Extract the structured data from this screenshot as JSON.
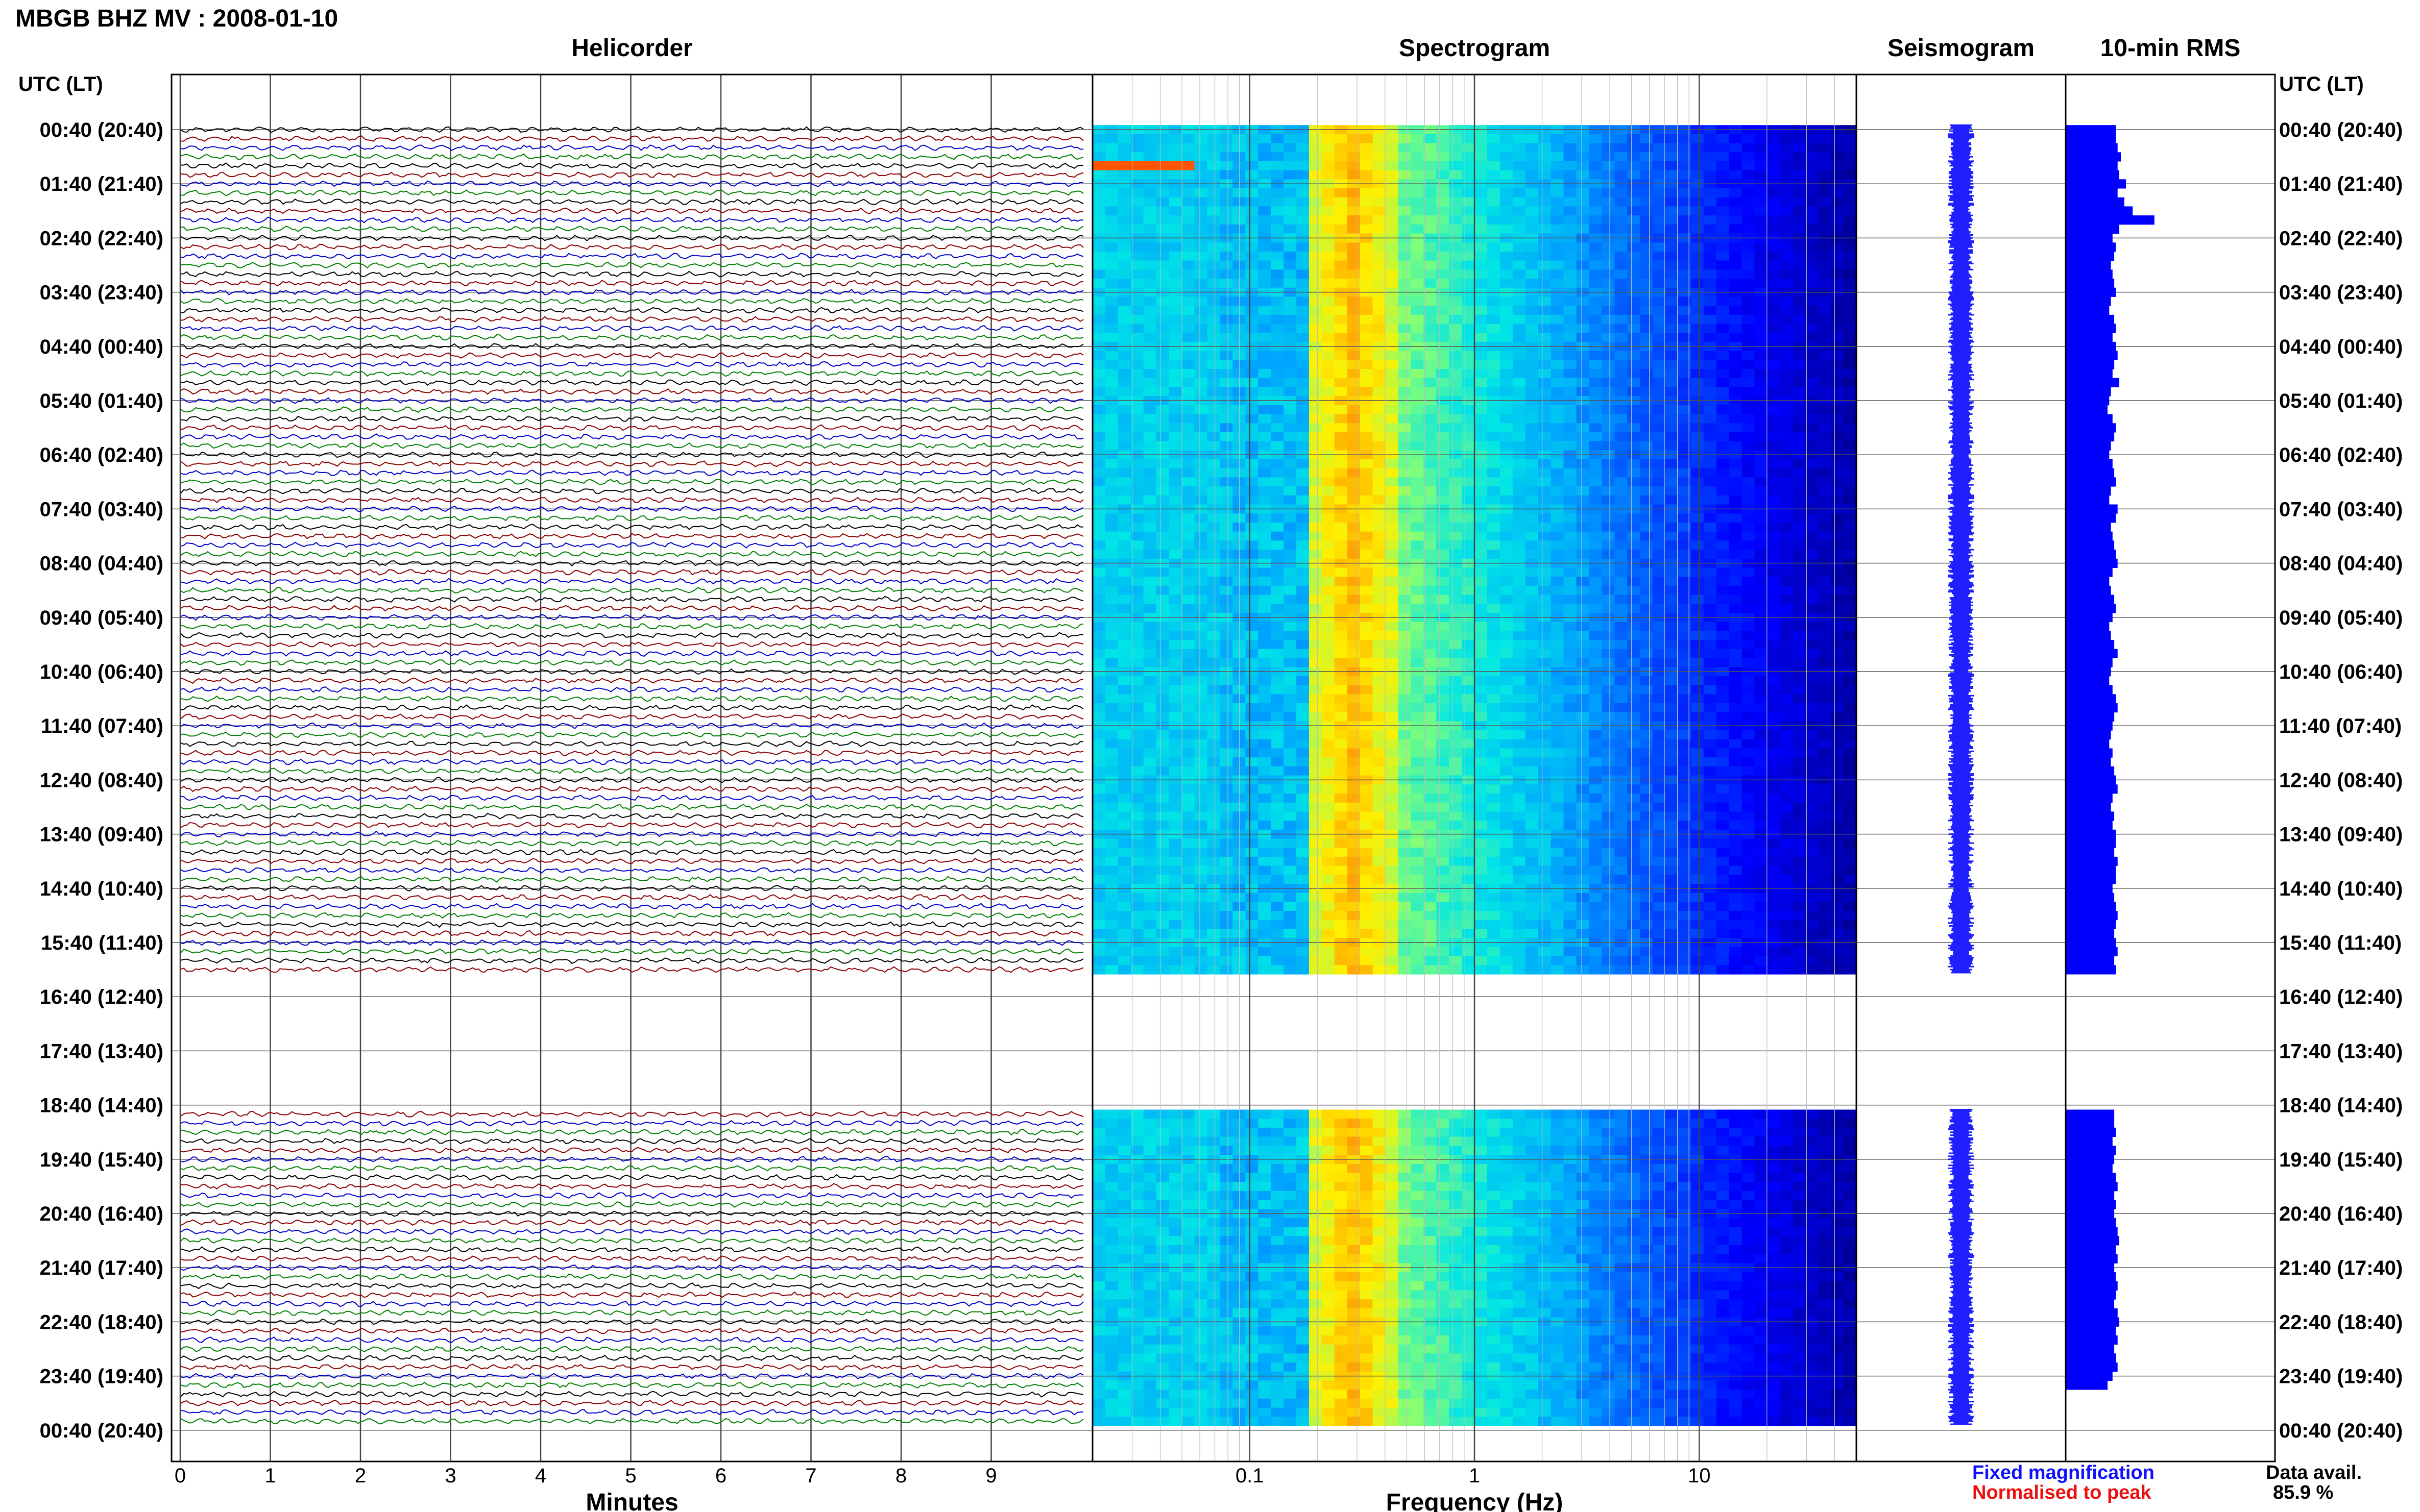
{
  "header": {
    "title": "MBGB BHZ MV : 2008-01-10"
  },
  "panels": {
    "helicorder": "Helicorder",
    "spectrogram": "Spectrogram",
    "seismogram": "Seismogram",
    "rms": "10-min RMS"
  },
  "axes": {
    "time_header": "UTC (LT)",
    "minutes_label": "Minutes",
    "frequency_label": "Frequency (Hz)"
  },
  "legend": {
    "fixed": "Fixed magnification",
    "normalised": "Normalised to peak",
    "data_avail_label": "Data avail.",
    "data_avail_value": "85.9 %"
  },
  "colors": {
    "trace_cycle": [
      "#000000",
      "#8b0000",
      "#0000cc",
      "#008000"
    ],
    "rms_fill": "#0000ff",
    "seismogram": "#2020ff",
    "spectrogram_low": "#00008f",
    "spectrogram_high": "#ff2000"
  },
  "chart_data": {
    "type": "heatmap",
    "time_labels": [
      "00:40 (20:40)",
      "01:40 (21:40)",
      "02:40 (22:40)",
      "03:40 (23:40)",
      "04:40 (00:40)",
      "05:40 (01:40)",
      "06:40 (02:40)",
      "07:40 (03:40)",
      "08:40 (04:40)",
      "09:40 (05:40)",
      "10:40 (06:40)",
      "11:40 (07:40)",
      "12:40 (08:40)",
      "13:40 (09:40)",
      "14:40 (10:40)",
      "15:40 (11:40)",
      "16:40 (12:40)",
      "17:40 (13:40)",
      "18:40 (14:40)",
      "19:40 (15:40)",
      "20:40 (16:40)",
      "21:40 (17:40)",
      "22:40 (18:40)",
      "23:40 (19:40)",
      "00:40 (20:40)"
    ],
    "minute_ticks": [
      "0",
      "1",
      "2",
      "3",
      "4",
      "5",
      "6",
      "7",
      "8",
      "9"
    ],
    "frequency_ticks": [
      "0.1",
      "1",
      "10"
    ],
    "frequency_range_hz": [
      0.02,
      50
    ],
    "frequency_scale": "log",
    "data_gap_utc": [
      "16:20",
      "18:50"
    ],
    "rms_10min": [
      0.3,
      0.3,
      0.31,
      0.33,
      0.31,
      0.32,
      0.36,
      0.31,
      0.35,
      0.4,
      0.53,
      0.32,
      0.28,
      0.3,
      0.29,
      0.27,
      0.28,
      0.29,
      0.3,
      0.27,
      0.26,
      0.29,
      0.3,
      0.28,
      0.3,
      0.31,
      0.29,
      0.28,
      0.32,
      0.27,
      0.26,
      0.25,
      0.28,
      0.3,
      0.29,
      0.27,
      0.26,
      0.28,
      0.29,
      0.3,
      0.27,
      0.26,
      0.31,
      0.3,
      0.27,
      0.28,
      0.29,
      0.3,
      0.31,
      0.28,
      0.26,
      0.27,
      0.29,
      0.3,
      0.28,
      0.26,
      0.27,
      0.29,
      0.31,
      0.28,
      0.27,
      0.26,
      0.28,
      0.3,
      0.31,
      0.29,
      0.28,
      0.27,
      0.26,
      0.28,
      0.27,
      0.29,
      0.3,
      0.31,
      0.28,
      0.27,
      0.29,
      0.28,
      0.3,
      0.3,
      0.29,
      0.31,
      0.3,
      0.3,
      0.28,
      0.29,
      0.3,
      0.31,
      0.3,
      0.29,
      0.3,
      0.31,
      0.29,
      0.3,
      null,
      null,
      null,
      null,
      null,
      null,
      null,
      null,
      null,
      null,
      null,
      null,
      null,
      null,
      null,
      0.29,
      0.29,
      0.3,
      0.28,
      0.3,
      0.29,
      0.28,
      0.3,
      0.31,
      0.29,
      0.3,
      0.29,
      0.3,
      0.31,
      0.32,
      0.3,
      0.31,
      0.29,
      0.3,
      0.31,
      0.3,
      0.29,
      0.31,
      0.32,
      0.3,
      0.31,
      0.29,
      0.3,
      0.31,
      0.28,
      0.25
    ]
  }
}
